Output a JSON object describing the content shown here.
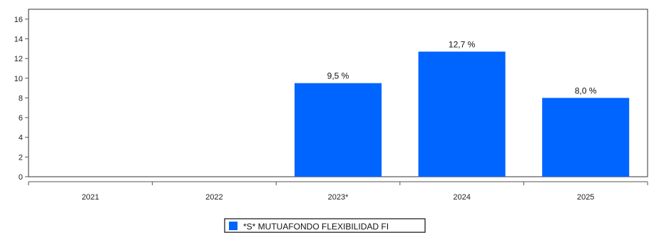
{
  "chart_data": {
    "type": "bar",
    "categories": [
      "2021",
      "2022",
      "2023*",
      "2024",
      "2025"
    ],
    "series": [
      {
        "name": "*S* MUTUAFONDO FLEXIBILIDAD FI",
        "values": [
          null,
          null,
          9.5,
          12.7,
          8.0
        ],
        "labels": [
          "",
          "",
          "9,5 %",
          "12,7 %",
          "8,0 %"
        ]
      }
    ],
    "title": "",
    "xlabel": "",
    "ylabel": "",
    "ylim": [
      0,
      17
    ],
    "yticks": [
      0,
      2,
      4,
      6,
      8,
      10,
      12,
      14,
      16
    ],
    "grid": false,
    "legend_position": "bottom-center",
    "colors": {
      "bar": "#0064ff",
      "axis": "#555555",
      "frame": "#333333",
      "legend_border": "#111111"
    }
  }
}
